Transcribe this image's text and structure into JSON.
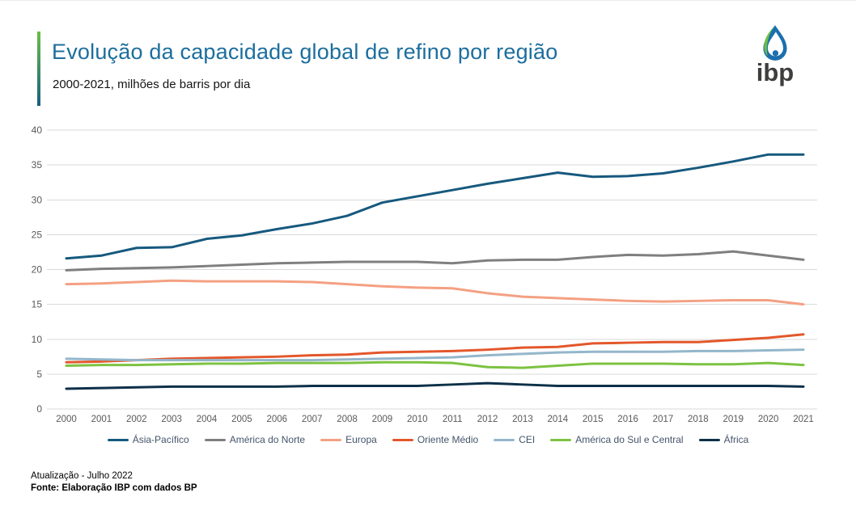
{
  "header": {
    "title": "Evolução da capacidade global de refino por região",
    "subtitle": "2000-2021, milhões de barris por dia"
  },
  "logo": {
    "text": "ibp",
    "drop_blue": "#1b6fae",
    "leaf_green": "#6cbe45",
    "text_color": "#3e3e3d"
  },
  "footer": {
    "update": "Atualização - Julho 2022",
    "source": "Fonte: Elaboração IBP com dados BP"
  },
  "colors": {
    "title_blue": "#1c6e9e",
    "gridline": "#d9d9d9",
    "tick_label": "#595959",
    "legend_text": "#44546a"
  },
  "chart_data": {
    "type": "line",
    "title": "Evolução da capacidade global de refino por região",
    "subtitle": "2000-2021, milhões de barris por dia",
    "xlabel": "",
    "ylabel": "milhões de barris por dia",
    "ylim": [
      0,
      40
    ],
    "ytick_step": 5,
    "grid": "horizontal",
    "legend_position": "bottom",
    "x": [
      2000,
      2001,
      2002,
      2003,
      2004,
      2005,
      2006,
      2007,
      2008,
      2009,
      2010,
      2011,
      2012,
      2013,
      2014,
      2015,
      2016,
      2017,
      2018,
      2019,
      2020,
      2021
    ],
    "series": [
      {
        "name": "Ásia-Pacífico",
        "color": "#16597e",
        "values": [
          21.6,
          22.0,
          23.1,
          23.2,
          24.4,
          24.9,
          25.8,
          26.6,
          27.7,
          29.6,
          30.5,
          31.4,
          32.3,
          33.1,
          33.9,
          33.3,
          33.4,
          33.8,
          34.6,
          35.5,
          36.5,
          36.5
        ]
      },
      {
        "name": "América do Norte",
        "color": "#7f7f7f",
        "values": [
          19.9,
          20.1,
          20.2,
          20.3,
          20.5,
          20.7,
          20.9,
          21.0,
          21.1,
          21.1,
          21.1,
          20.9,
          21.3,
          21.4,
          21.4,
          21.8,
          22.1,
          22.0,
          22.2,
          22.6,
          22.0,
          21.4
        ]
      },
      {
        "name": "Europa",
        "color": "#f4a083",
        "values": [
          17.9,
          18.0,
          18.2,
          18.4,
          18.3,
          18.3,
          18.3,
          18.2,
          17.9,
          17.6,
          17.4,
          17.3,
          16.6,
          16.1,
          15.9,
          15.7,
          15.5,
          15.4,
          15.5,
          15.6,
          15.6,
          15.0
        ]
      },
      {
        "name": "Oriente Médio",
        "color": "#e3572b",
        "values": [
          6.7,
          6.8,
          7.0,
          7.2,
          7.3,
          7.4,
          7.5,
          7.7,
          7.8,
          8.1,
          8.2,
          8.3,
          8.5,
          8.8,
          8.9,
          9.4,
          9.5,
          9.6,
          9.6,
          9.9,
          10.2,
          10.7
        ]
      },
      {
        "name": "CEI",
        "color": "#94b6cb",
        "values": [
          7.2,
          7.1,
          7.0,
          7.0,
          7.0,
          7.0,
          7.0,
          7.0,
          7.1,
          7.2,
          7.3,
          7.4,
          7.7,
          7.9,
          8.1,
          8.2,
          8.2,
          8.2,
          8.3,
          8.3,
          8.4,
          8.5
        ]
      },
      {
        "name": "América do Sul e Central",
        "color": "#7dc242",
        "values": [
          6.2,
          6.3,
          6.3,
          6.4,
          6.5,
          6.5,
          6.6,
          6.6,
          6.6,
          6.7,
          6.7,
          6.6,
          6.0,
          5.9,
          6.2,
          6.5,
          6.5,
          6.5,
          6.4,
          6.4,
          6.6,
          6.3
        ]
      },
      {
        "name": "África",
        "color": "#0d3049",
        "values": [
          2.9,
          3.0,
          3.1,
          3.2,
          3.2,
          3.2,
          3.2,
          3.3,
          3.3,
          3.3,
          3.3,
          3.5,
          3.7,
          3.5,
          3.3,
          3.3,
          3.3,
          3.3,
          3.3,
          3.3,
          3.3,
          3.2
        ]
      }
    ]
  }
}
